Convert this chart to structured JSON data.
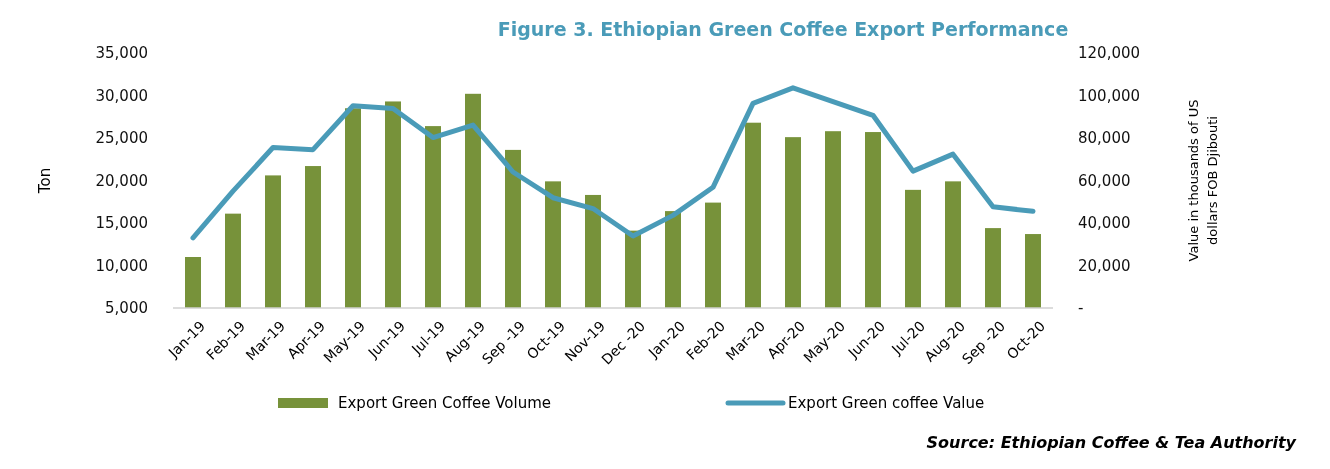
{
  "chart_data": {
    "type": "bar",
    "title": "Figure 3. Ethiopian Green Coffee Export Performance",
    "ylabel": "Ton",
    "y2label": "Value in thousands of US dollars FOB Djibouti",
    "categories": [
      "Jan-19",
      "Feb-19",
      "Mar-19",
      "Apr-19",
      "May-19",
      "Jun-19",
      "Jul-19",
      "Aug-19",
      "Sep -19",
      "Oct-19",
      "Nov-19",
      "Dec -20",
      "Jan-20",
      "Feb-20",
      "Mar-20",
      "Apr-20",
      "May-20",
      "Jun-20",
      "Jul-20",
      "Aug-20",
      "Sep -20",
      "Oct-20"
    ],
    "series": [
      {
        "name": "Export Green Coffee Volume",
        "color": "#77923a",
        "values": [
          11000,
          16100,
          20600,
          21700,
          28500,
          29300,
          26400,
          30200,
          23600,
          19900,
          18300,
          14100,
          16400,
          17400,
          26800,
          25100,
          25800,
          25700,
          18900,
          19900,
          14400,
          13700
        ]
      },
      {
        "name": "Export Green coffee Value",
        "type": "line",
        "axis": "y2",
        "color": "#4a9bb8",
        "values": [
          33000,
          55000,
          75500,
          74500,
          95200,
          93900,
          80200,
          86100,
          64000,
          51900,
          46800,
          33900,
          43600,
          56800,
          96300,
          103600,
          97100,
          90700,
          64400,
          72400,
          47600,
          45500
        ]
      }
    ],
    "ylim": [
      5000,
      35000
    ],
    "yticks": [
      {
        "value": 5000,
        "label": "5,000"
      },
      {
        "value": 10000,
        "label": "10,000"
      },
      {
        "value": 15000,
        "label": "15,000"
      },
      {
        "value": 20000,
        "label": "20,000"
      },
      {
        "value": 25000,
        "label": "25,000"
      },
      {
        "value": 30000,
        "label": "30,000"
      },
      {
        "value": 35000,
        "label": "35,000"
      }
    ],
    "y2lim": [
      0,
      120000
    ],
    "y2ticks": [
      {
        "value": 0,
        "label": "-"
      },
      {
        "value": 20000,
        "label": "20,000"
      },
      {
        "value": 40000,
        "label": "40,000"
      },
      {
        "value": 60000,
        "label": "60,000"
      },
      {
        "value": 80000,
        "label": "80,000"
      },
      {
        "value": 100000,
        "label": "100,000"
      },
      {
        "value": 120000,
        "label": "120,000"
      }
    ],
    "legend": "bottom",
    "marker": "none",
    "line_style": "solid",
    "annotations": [
      "Source:  Ethiopian Coffee & Tea Authority"
    ]
  }
}
